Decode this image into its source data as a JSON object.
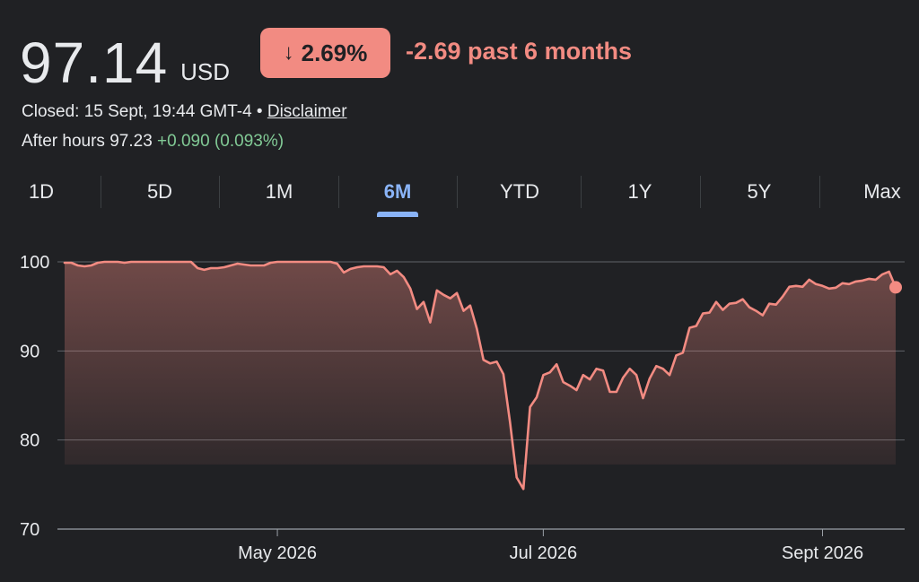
{
  "quote": {
    "price": "97.14",
    "currency": "USD",
    "change_percent": "2.69%",
    "change_arrow": "↓",
    "change_text": "-2.69 past 6 months",
    "closed_text": "Closed: 15 Sept, 19:44 GMT-4 •",
    "disclaimer_label": "Disclaimer",
    "after_hours_label": "After hours 97.23",
    "after_hours_change": "+0.090 (0.093%)"
  },
  "tabs": [
    {
      "label": "1D"
    },
    {
      "label": "5D"
    },
    {
      "label": "1M"
    },
    {
      "label": "6M",
      "active": true
    },
    {
      "label": "YTD"
    },
    {
      "label": "1Y"
    },
    {
      "label": "5Y"
    },
    {
      "label": "Max"
    }
  ],
  "colors": {
    "line": "#f28b82",
    "accent": "#8ab4f8",
    "positive": "#81c995",
    "background": "#202124",
    "grid": "#5f6368"
  },
  "chart_data": {
    "type": "area",
    "title": "",
    "xlabel": "",
    "ylabel": "",
    "ylim": [
      70,
      100
    ],
    "yticks": [
      100,
      90,
      80,
      70
    ],
    "x_tick_labels": [
      {
        "label": "May 2026",
        "index": 32
      },
      {
        "label": "Jul 2026",
        "index": 72
      },
      {
        "label": "Sept 2026",
        "index": 114
      }
    ],
    "grid": true,
    "legend": "none",
    "series": [
      {
        "values": [
          99.9,
          99.9,
          99.6,
          99.5,
          99.6,
          99.9,
          100.0,
          100.0,
          100.0,
          99.9,
          100.0,
          100.0,
          100.0,
          100.0,
          100.0,
          100.0,
          100.0,
          100.0,
          100.0,
          100.0,
          99.3,
          99.1,
          99.3,
          99.3,
          99.4,
          99.6,
          99.8,
          99.7,
          99.6,
          99.6,
          99.6,
          99.9,
          100.0,
          100.0,
          100.0,
          100.0,
          100.0,
          100.0,
          100.0,
          100.0,
          100.0,
          99.8,
          98.8,
          99.2,
          99.4,
          99.5,
          99.5,
          99.5,
          99.4,
          98.6,
          99.0,
          98.3,
          97.0,
          94.7,
          95.5,
          93.2,
          96.8,
          96.3,
          95.9,
          96.5,
          94.5,
          95.1,
          92.5,
          89.0,
          88.6,
          88.8,
          87.4,
          82.0,
          75.8,
          74.5,
          83.7,
          84.8,
          87.3,
          87.6,
          88.5,
          86.5,
          86.1,
          85.6,
          87.3,
          86.8,
          88.0,
          87.8,
          85.4,
          85.4,
          87.0,
          88.0,
          87.3,
          84.7,
          86.9,
          88.3,
          88.0,
          87.3,
          89.5,
          89.8,
          92.6,
          92.8,
          94.2,
          94.3,
          95.5,
          94.6,
          95.3,
          95.4,
          95.8,
          94.9,
          94.5,
          94.0,
          95.3,
          95.2,
          96.1,
          97.2,
          97.3,
          97.2,
          98.0,
          97.5,
          97.3,
          97.0,
          97.1,
          97.6,
          97.5,
          97.8,
          97.9,
          98.1,
          98.0,
          98.6,
          98.9,
          97.14
        ]
      }
    ]
  }
}
